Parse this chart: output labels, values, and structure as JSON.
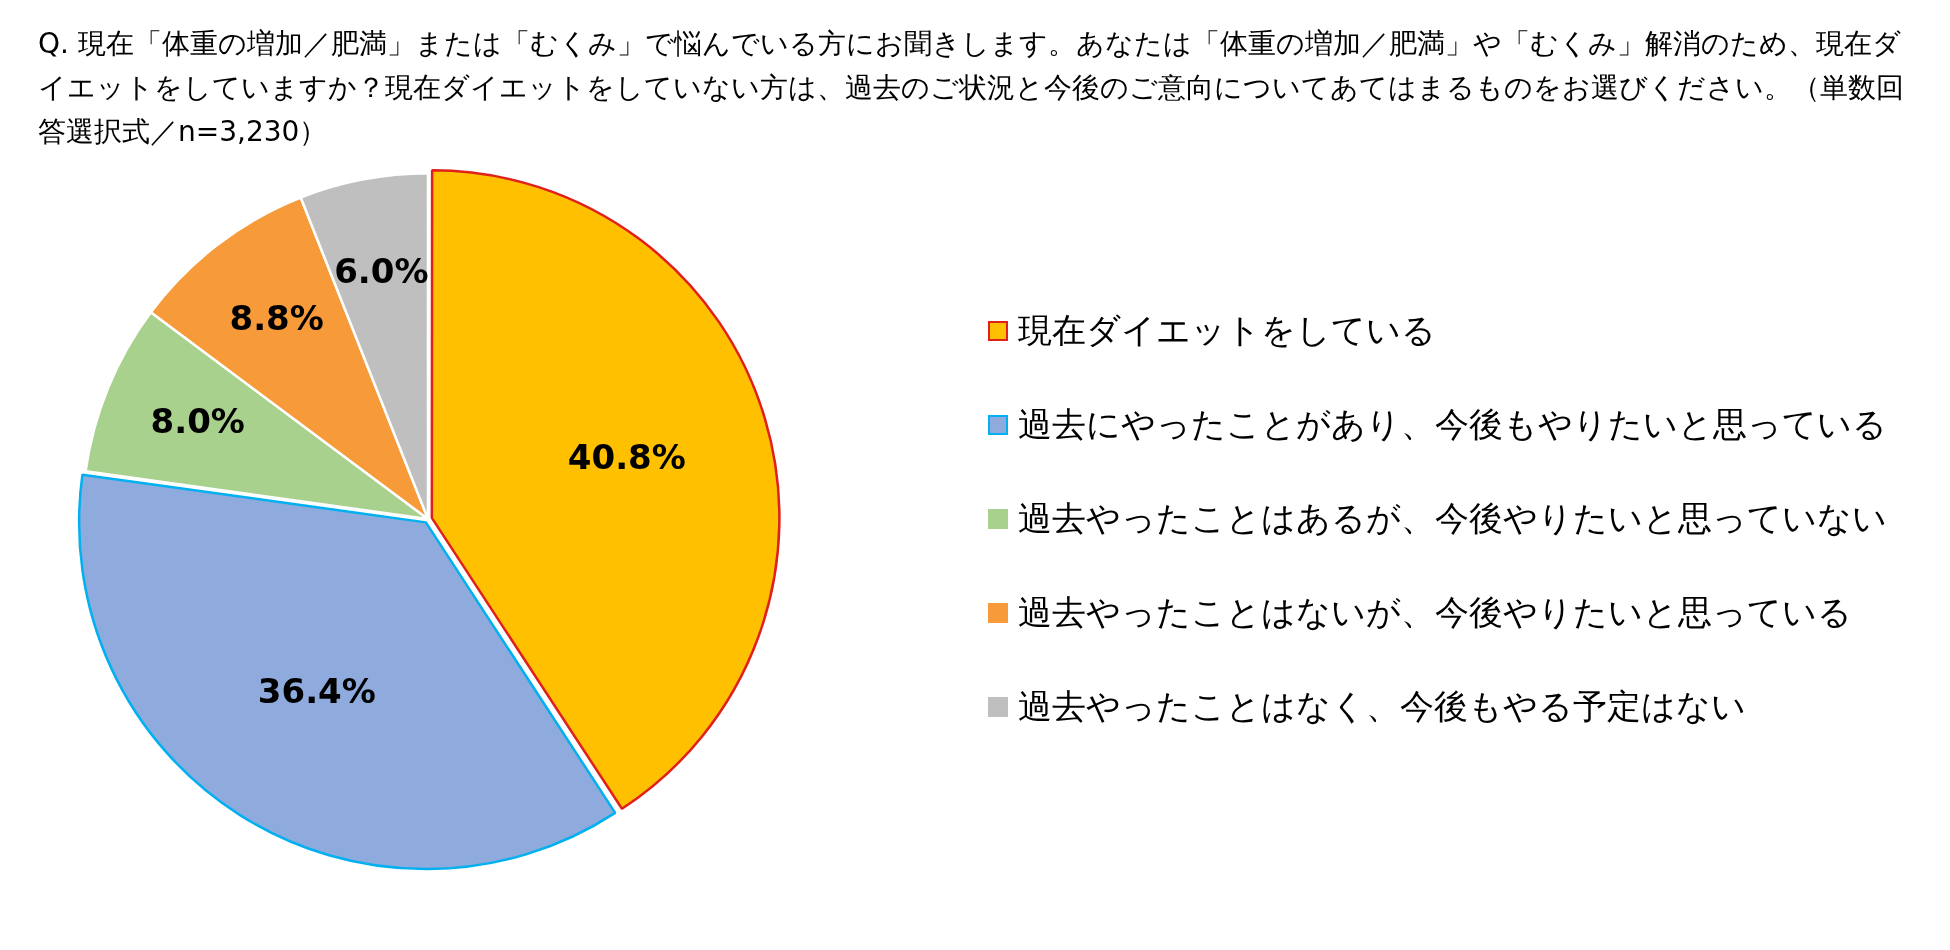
{
  "chart_data": {
    "type": "pie",
    "title": "Q. 現在「体重の増加／肥満」または「むくみ」で悩んでいる方にお聞きします。あなたは「体重の増加／肥満」や「むくみ」解消のため、現在ダイエットをしていますか？現在ダイエットをしていない方は、過去のご状況と今後のご意向についてあてはまるものをお選びください。（単数回答選択式／n=3,230）",
    "categories": [
      "現在ダイエットをしている",
      "過去にやったことがあり、今後もやりたいと思っている",
      "過去やったことはあるが、今後やりたいと思っていない",
      "過去やったことはないが、今後やりたいと思っている",
      "過去やったことはなく、今後もやる予定はない"
    ],
    "values": [
      40.8,
      36.4,
      8.0,
      8.8,
      6.0
    ],
    "value_labels": [
      "40.8%",
      "36.4%",
      "8.0%",
      "8.8%",
      "6.0%"
    ],
    "colors": [
      "#ffc000",
      "#8faadc",
      "#a9d18e",
      "#f79a3a",
      "#bfbfbf"
    ],
    "legend": "right"
  }
}
